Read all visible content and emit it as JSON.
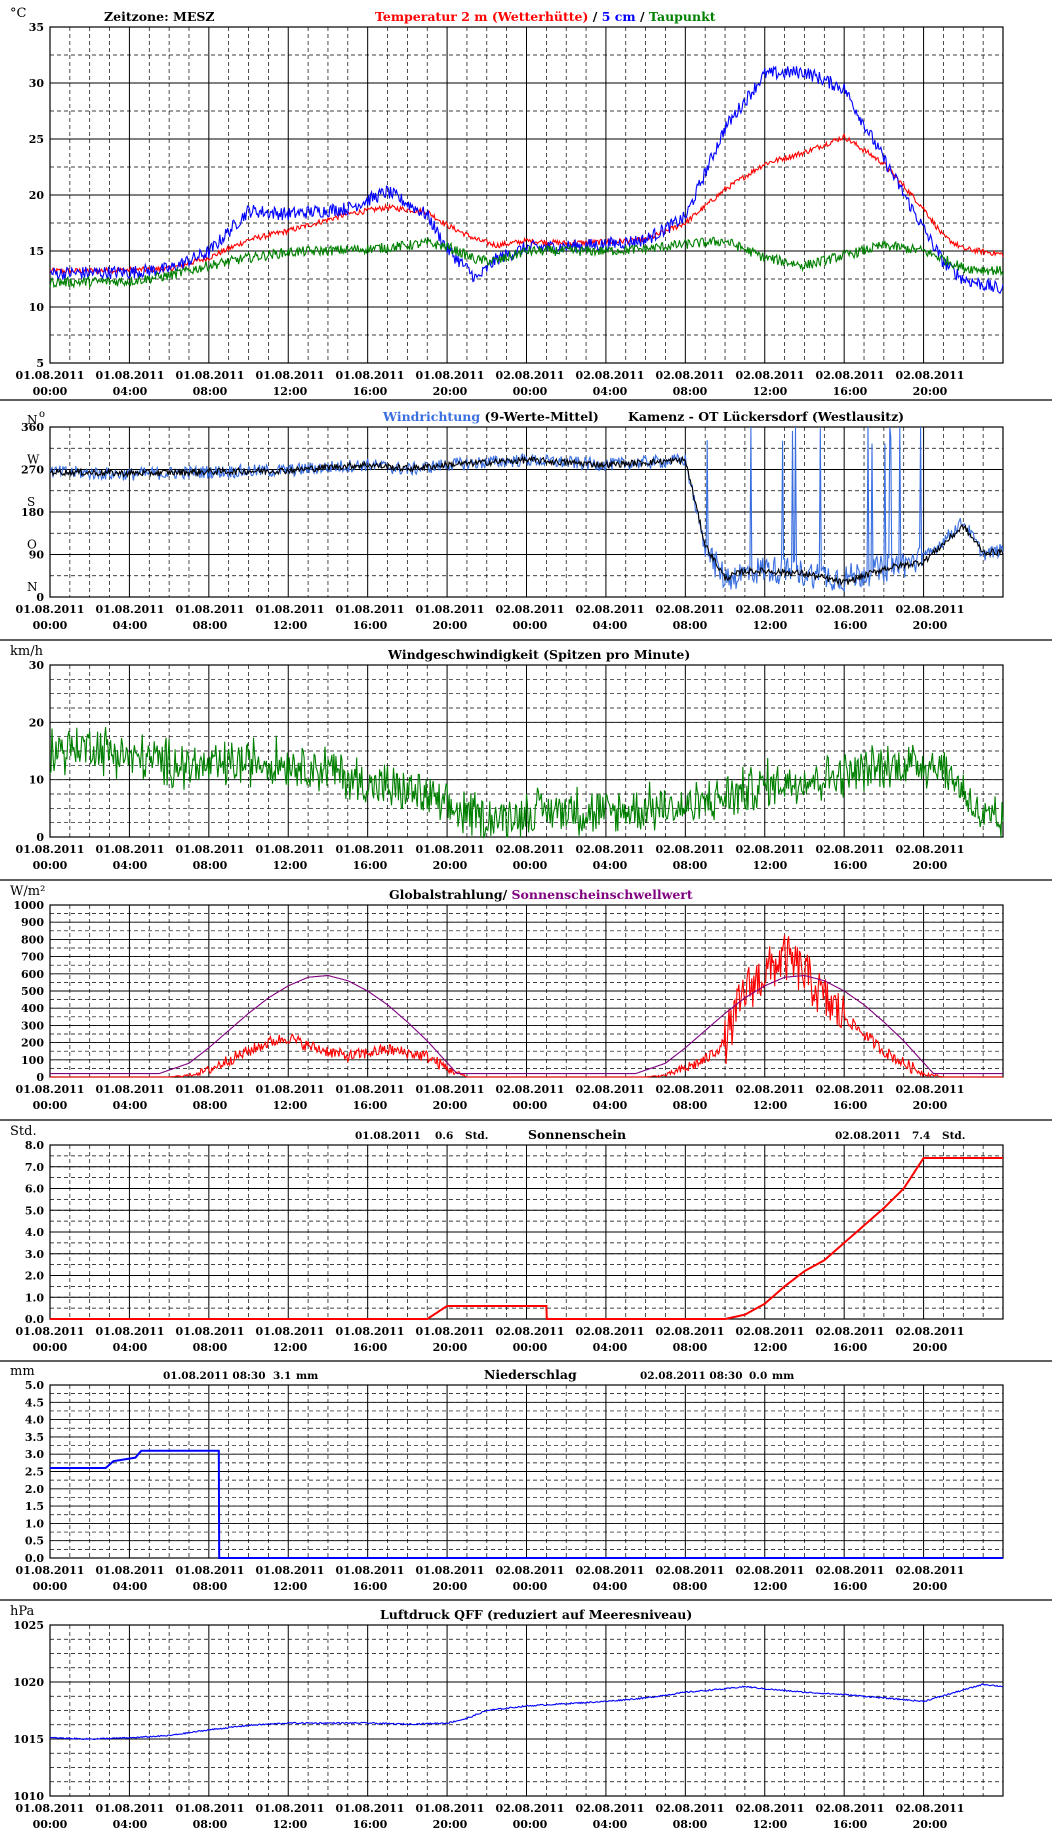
{
  "time_labels": [
    {
      "d": "01.08.2011",
      "t": "00:00"
    },
    {
      "d": "01.08.2011",
      "t": "04:00"
    },
    {
      "d": "01.08.2011",
      "t": "08:00"
    },
    {
      "d": "01.08.2011",
      "t": "12:00"
    },
    {
      "d": "01.08.2011",
      "t": "16:00"
    },
    {
      "d": "01.08.2011",
      "t": "20:00"
    },
    {
      "d": "02.08.2011",
      "t": "00:00"
    },
    {
      "d": "02.08.2011",
      "t": "04:00"
    },
    {
      "d": "02.08.2011",
      "t": "08:00"
    },
    {
      "d": "02.08.2011",
      "t": "12:00"
    },
    {
      "d": "02.08.2011",
      "t": "16:00"
    },
    {
      "d": "02.08.2011",
      "t": "20:00"
    }
  ],
  "chart_data": [
    {
      "id": "temperature",
      "type": "line",
      "unit": "°C",
      "zeitzone": "Zeitzone: MESZ",
      "title_parts": [
        {
          "text": "Temperatur 2 m (Wetterhütte)",
          "color": "#ff0000"
        },
        {
          "text": " / ",
          "color": "#000000"
        },
        {
          "text": "5 cm",
          "color": "#0000ff"
        },
        {
          "text": " / ",
          "color": "#000000"
        },
        {
          "text": "Taupunkt",
          "color": "#008000"
        }
      ],
      "ylim": [
        5,
        35
      ],
      "yticks": [
        5,
        10,
        15,
        20,
        25,
        30,
        35
      ],
      "x_hours": [
        0,
        4,
        6,
        8,
        10,
        12,
        15,
        17,
        19,
        20,
        21.5,
        22.5,
        24,
        26,
        28,
        30,
        32,
        34,
        36,
        38,
        40,
        42,
        44,
        45,
        46,
        48
      ],
      "series": [
        {
          "name": "Temperatur 2 m (Wetterhütte)",
          "color": "#ff0000",
          "values": [
            13.2,
            13.3,
            13.4,
            14.4,
            16.0,
            16.8,
            18.3,
            18.9,
            18.5,
            17.3,
            16.0,
            15.5,
            15.9,
            15.7,
            15.8,
            16.0,
            17.5,
            20.5,
            22.8,
            23.8,
            25.2,
            22.8,
            18.8,
            16.3,
            15.2,
            14.7
          ]
        },
        {
          "name": "5 cm",
          "color": "#0000ff",
          "values": [
            13.0,
            13.1,
            13.4,
            14.9,
            18.6,
            18.3,
            18.8,
            20.3,
            18.2,
            15.2,
            12.5,
            14.3,
            15.3,
            15.4,
            15.6,
            16.0,
            18.0,
            26.0,
            30.8,
            31.0,
            29.5,
            23.2,
            17.0,
            14.0,
            12.5,
            11.5
          ]
        },
        {
          "name": "Taupunkt",
          "color": "#008000",
          "values": [
            12.2,
            12.3,
            12.8,
            13.7,
            14.4,
            14.9,
            15.1,
            15.3,
            15.7,
            15.4,
            14.2,
            14.1,
            15.0,
            15.0,
            15.0,
            15.2,
            15.6,
            15.9,
            14.4,
            13.7,
            14.6,
            15.5,
            15.0,
            14.3,
            13.5,
            13.2
          ]
        }
      ]
    },
    {
      "id": "wind_direction",
      "type": "line",
      "unit": "N",
      "unit_suffix": "o",
      "title_parts": [
        {
          "text": "Windrichtung",
          "color": "#3a6fe0"
        },
        {
          "text": " (9-Werte-Mittel)",
          "color": "#000000"
        }
      ],
      "station": "Kamenz - OT Lückersdorf (Westlausitz)",
      "ylim": [
        0,
        360
      ],
      "yticks": [
        0,
        90,
        180,
        270,
        360
      ],
      "compass": [
        {
          "v": 360,
          "t": "N"
        },
        {
          "v": 270,
          "t": "W"
        },
        {
          "v": 180,
          "t": "S"
        },
        {
          "v": 90,
          "t": "O"
        },
        {
          "v": 0,
          "t": "N"
        }
      ],
      "x_hours": [
        0,
        4,
        8,
        12,
        14,
        16,
        18,
        20,
        22,
        24,
        26,
        28,
        30,
        32,
        33,
        34,
        35,
        36,
        38,
        40,
        42,
        44,
        46,
        47,
        48
      ],
      "series": [
        {
          "name": "Windrichtung",
          "color": "#3a6fe0",
          "values": [
            265,
            260,
            265,
            268,
            275,
            280,
            270,
            280,
            285,
            290,
            285,
            280,
            285,
            290,
            100,
            40,
            50,
            60,
            50,
            40,
            60,
            80,
            160,
            90,
            100
          ]
        },
        {
          "name": "9-Werte-Mittel",
          "color": "#000000",
          "values": [
            265,
            262,
            265,
            268,
            275,
            280,
            272,
            280,
            285,
            290,
            285,
            280,
            285,
            290,
            110,
            40,
            55,
            55,
            50,
            30,
            60,
            75,
            150,
            95,
            95
          ]
        }
      ]
    },
    {
      "id": "wind_speed",
      "type": "line",
      "unit": "km/h",
      "title_parts": [
        {
          "text": "Windgeschwindigkeit (Spitzen pro Minute)",
          "color": "#000000"
        }
      ],
      "ylim": [
        0,
        30
      ],
      "yticks": [
        0,
        10,
        20,
        30
      ],
      "x_hours": [
        0,
        2,
        4,
        6,
        8,
        10,
        12,
        14,
        16,
        18,
        19,
        20,
        22,
        24,
        26,
        28,
        30,
        32,
        34,
        36,
        38,
        40,
        42,
        44,
        45,
        46,
        47,
        48
      ],
      "series": [
        {
          "name": "Windgeschwindigkeit",
          "color": "#008000",
          "values": [
            15,
            16,
            14,
            13,
            12,
            13,
            13,
            12,
            9,
            8,
            7,
            5,
            3,
            4,
            5,
            4,
            5,
            5,
            7,
            9,
            10,
            11,
            12,
            13,
            12,
            8,
            3,
            2
          ]
        }
      ]
    },
    {
      "id": "global_radiation",
      "type": "line",
      "unit": "W/m²",
      "title_parts": [
        {
          "text": "Globalstrahlung",
          "color": "#000000"
        },
        {
          "text": "/ ",
          "color": "#000000"
        },
        {
          "text": "Sonnenscheinschwellwert",
          "color": "#800080"
        }
      ],
      "ylim": [
        0,
        1000
      ],
      "yticks": [
        0,
        100,
        200,
        300,
        400,
        500,
        600,
        700,
        800,
        900,
        1000
      ],
      "series": [
        {
          "name": "Globalstrahlung",
          "color": "#ff0000",
          "x_hours": [
            0,
            6,
            7,
            8,
            9,
            10,
            11,
            12,
            13,
            14,
            15,
            16,
            17,
            18,
            19,
            20,
            21,
            24,
            30,
            31,
            32,
            33,
            34,
            35,
            36,
            37,
            38,
            39,
            40,
            41,
            42,
            43,
            44,
            45,
            48
          ],
          "values": [
            0,
            0,
            10,
            40,
            100,
            150,
            200,
            230,
            180,
            150,
            120,
            140,
            160,
            140,
            120,
            50,
            0,
            0,
            0,
            10,
            50,
            100,
            200,
            500,
            600,
            700,
            600,
            450,
            350,
            250,
            150,
            80,
            20,
            0,
            0
          ]
        },
        {
          "name": "Sonnenscheinschwellwert",
          "color": "#800080",
          "x_hours": [
            0,
            5.5,
            7,
            8,
            9,
            10,
            11,
            12,
            13,
            14,
            15,
            16,
            17,
            18,
            19,
            20.5,
            29.5,
            31,
            32,
            33,
            34,
            35,
            36,
            37,
            38,
            39,
            40,
            41,
            42,
            43,
            44.5,
            48
          ],
          "values": [
            20,
            20,
            80,
            170,
            270,
            370,
            460,
            530,
            580,
            590,
            560,
            500,
            420,
            320,
            210,
            20,
            20,
            80,
            170,
            270,
            370,
            460,
            530,
            580,
            590,
            560,
            500,
            420,
            320,
            210,
            20,
            20
          ]
        }
      ]
    },
    {
      "id": "sunshine",
      "type": "line",
      "unit": "Std.",
      "title_parts": [
        {
          "text": "Sonnenschein",
          "color": "#000000"
        }
      ],
      "summaries": [
        {
          "date": "01.08.2011",
          "value": "0.6",
          "unit": "Std."
        },
        {
          "date": "02.08.2011",
          "value": "7.4",
          "unit": "Std."
        }
      ],
      "ylim": [
        0,
        8
      ],
      "yticks": [
        0.0,
        1.0,
        2.0,
        3.0,
        4.0,
        5.0,
        6.0,
        7.0,
        8.0
      ],
      "series": [
        {
          "name": "Sonnenschein",
          "color": "#ff0000",
          "x_hours": [
            0,
            19,
            19.5,
            20,
            25,
            25.01,
            34,
            35,
            36,
            37,
            38,
            39,
            40,
            41,
            42,
            43,
            44,
            48
          ],
          "values": [
            0,
            0,
            0.3,
            0.6,
            0.6,
            0,
            0,
            0.2,
            0.7,
            1.5,
            2.2,
            2.7,
            3.5,
            4.3,
            5.1,
            6.0,
            7.4,
            7.4
          ]
        }
      ]
    },
    {
      "id": "precipitation",
      "type": "line",
      "unit": "mm",
      "title_parts": [
        {
          "text": "Niederschlag",
          "color": "#000000"
        }
      ],
      "summaries": [
        {
          "date": "01.08.2011 08:30",
          "value": "3.1",
          "unit": "mm"
        },
        {
          "date": "02.08.2011 08:30",
          "value": "0.0",
          "unit": "mm"
        }
      ],
      "ylim": [
        0,
        5
      ],
      "yticks": [
        0.0,
        0.5,
        1.0,
        1.5,
        2.0,
        2.5,
        3.0,
        3.5,
        4.0,
        4.5,
        5.0
      ],
      "series": [
        {
          "name": "Niederschlag",
          "color": "#0000ff",
          "x_hours": [
            0,
            2.8,
            3.2,
            4.3,
            4.6,
            8.5,
            8.51,
            48
          ],
          "values": [
            2.6,
            2.6,
            2.8,
            2.9,
            3.1,
            3.1,
            0,
            0
          ]
        }
      ]
    },
    {
      "id": "pressure",
      "type": "line",
      "unit": "hPa",
      "title_parts": [
        {
          "text": "Luftdruck QFF (reduziert auf Meeresniveau)",
          "color": "#000000"
        }
      ],
      "ylim": [
        1010,
        1025
      ],
      "yticks": [
        1010,
        1015,
        1020,
        1025
      ],
      "series": [
        {
          "name": "Luftdruck",
          "color": "#0000ff",
          "x_hours": [
            0,
            2,
            4,
            6,
            8,
            10,
            12,
            14,
            16,
            18,
            20,
            21,
            22,
            24,
            26,
            28,
            30,
            32,
            34,
            35,
            36,
            38,
            40,
            42,
            44,
            46,
            47,
            48
          ],
          "values": [
            1015.1,
            1015.0,
            1015.1,
            1015.3,
            1015.8,
            1016.2,
            1016.4,
            1016.4,
            1016.4,
            1016.3,
            1016.4,
            1016.8,
            1017.5,
            1017.9,
            1018.1,
            1018.3,
            1018.6,
            1019.1,
            1019.4,
            1019.6,
            1019.4,
            1019.1,
            1018.9,
            1018.6,
            1018.3,
            1019.3,
            1019.8,
            1019.6
          ]
        }
      ]
    }
  ]
}
